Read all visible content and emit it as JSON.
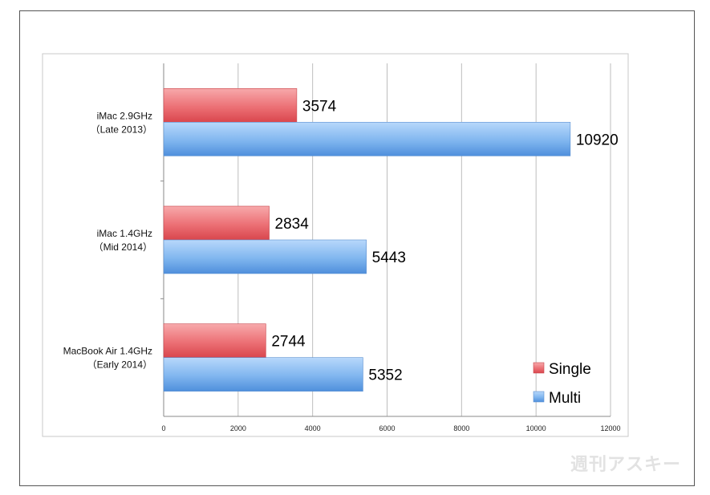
{
  "chart_data": {
    "type": "bar",
    "orientation": "horizontal",
    "categories": [
      [
        "iMac 2.9GHz",
        "（Late 2013）"
      ],
      [
        "iMac 1.4GHz",
        "（Mid 2014）"
      ],
      [
        "MacBook Air 1.4GHz",
        "（Early 2014）"
      ]
    ],
    "series": [
      {
        "name": "Single",
        "values": [
          3574,
          2834,
          2744
        ],
        "color": "#e8656a"
      },
      {
        "name": "Multi",
        "values": [
          10920,
          5443,
          5352
        ],
        "color": "#7ab3ee"
      }
    ],
    "xlim": [
      0,
      12000
    ],
    "x_ticks": [
      0,
      2000,
      4000,
      6000,
      8000,
      10000,
      12000
    ],
    "grid": true,
    "legend_position": "bottom-right",
    "title": "",
    "xlabel": "",
    "ylabel": ""
  },
  "watermark": "週刊アスキー"
}
